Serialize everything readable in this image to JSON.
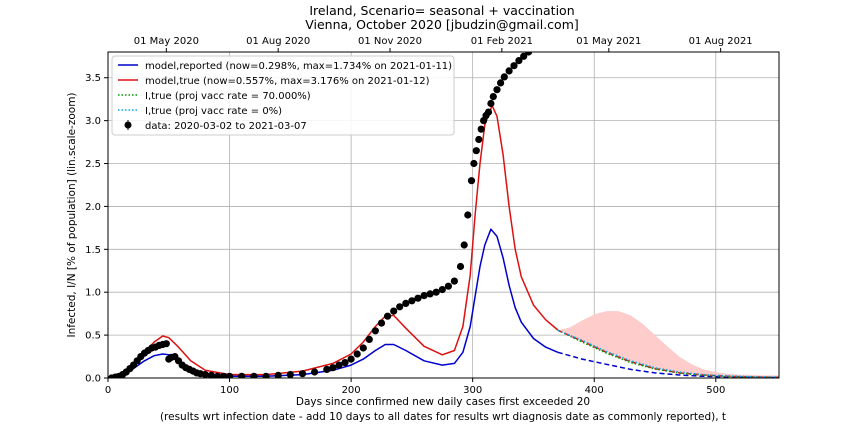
{
  "chart_data": {
    "type": "line",
    "title": "Ireland, Scenario= seasonal + vaccination",
    "subtitle": "Vienna, October 2020 [jbudzin@gmail.com]",
    "xlabel": "Days since confirmed new daily cases first exceeded 20",
    "xlabel2": "(results wrt infection date - add 10 days to all dates for results wrt diagnosis date as commonly reported), t",
    "ylabel": "Infected, I/N [% of population] (lin.scale-zoom)",
    "xlim": [
      0,
      552
    ],
    "ylim": [
      0,
      3.8
    ],
    "grid": true,
    "legend_position": "top-left",
    "x_ticks": [
      0,
      100,
      200,
      300,
      400,
      500
    ],
    "y_ticks": [
      0.0,
      0.5,
      1.0,
      1.5,
      2.0,
      2.5,
      3.0,
      3.5
    ],
    "top_axis": {
      "ticks": [
        {
          "label": "01 May 2020",
          "x": 48
        },
        {
          "label": "01 Aug 2020",
          "x": 140
        },
        {
          "label": "01 Nov 2020",
          "x": 232
        },
        {
          "label": "01 Feb 2021",
          "x": 324
        },
        {
          "label": "01 May 2021",
          "x": 412
        },
        {
          "label": "01 Aug 2021",
          "x": 504
        }
      ]
    },
    "series": [
      {
        "name": "model,reported (now=0.298%, max=1.734% on 2021-01-11)",
        "color": "#0000cc",
        "style": "solid",
        "x": [
          0,
          10,
          20,
          30,
          38,
          45,
          50,
          58,
          68,
          80,
          100,
          130,
          160,
          185,
          200,
          210,
          220,
          228,
          235,
          245,
          260,
          275,
          285,
          292,
          298,
          302,
          306,
          310,
          315,
          320,
          325,
          330,
          335,
          340,
          350,
          360,
          370
        ],
        "y": [
          0,
          0.03,
          0.1,
          0.2,
          0.26,
          0.28,
          0.27,
          0.21,
          0.11,
          0.05,
          0.02,
          0.02,
          0.04,
          0.09,
          0.15,
          0.22,
          0.32,
          0.39,
          0.39,
          0.32,
          0.2,
          0.15,
          0.17,
          0.3,
          0.6,
          0.95,
          1.3,
          1.55,
          1.734,
          1.65,
          1.4,
          1.08,
          0.82,
          0.65,
          0.46,
          0.36,
          0.3
        ]
      },
      {
        "name": "model,true (now=0.557%, max=3.176% on 2021-01-12)",
        "color": "#dd1111",
        "style": "solid",
        "x": [
          0,
          10,
          20,
          30,
          38,
          45,
          50,
          58,
          68,
          80,
          100,
          130,
          160,
          185,
          200,
          210,
          220,
          228,
          235,
          245,
          260,
          275,
          285,
          292,
          298,
          302,
          306,
          310,
          316,
          320,
          325,
          330,
          335,
          340,
          350,
          360,
          370
        ],
        "y": [
          0,
          0.05,
          0.15,
          0.3,
          0.42,
          0.49,
          0.47,
          0.36,
          0.2,
          0.09,
          0.04,
          0.04,
          0.08,
          0.17,
          0.28,
          0.42,
          0.6,
          0.72,
          0.73,
          0.58,
          0.37,
          0.27,
          0.32,
          0.6,
          1.2,
          1.9,
          2.5,
          2.95,
          3.176,
          3.05,
          2.6,
          2.0,
          1.5,
          1.18,
          0.85,
          0.68,
          0.56
        ]
      },
      {
        "name": "model,reported projected",
        "color": "#0000cc",
        "style": "dashed",
        "x": [
          370,
          390,
          410,
          430,
          450,
          470,
          490,
          510,
          530,
          552
        ],
        "y": [
          0.3,
          0.22,
          0.16,
          0.1,
          0.06,
          0.035,
          0.02,
          0.012,
          0.008,
          0.005
        ]
      },
      {
        "name": "model,true projected",
        "color": "#dd1111",
        "style": "dashed",
        "x": [
          370,
          390,
          410,
          430,
          450,
          470,
          490,
          510,
          530,
          552
        ],
        "y": [
          0.556,
          0.43,
          0.3,
          0.19,
          0.11,
          0.06,
          0.035,
          0.02,
          0.012,
          0.008
        ]
      },
      {
        "name": "I,true (proj vacc rate = 70.000%)",
        "color": "#009900",
        "style": "dotted",
        "x": [
          370,
          390,
          410,
          430,
          450,
          470,
          490,
          510,
          530,
          552
        ],
        "y": [
          0.556,
          0.42,
          0.29,
          0.18,
          0.105,
          0.057,
          0.032,
          0.018,
          0.011,
          0.007
        ]
      },
      {
        "name": "I,true (proj vacc rate = 0%)",
        "color": "#00aaee",
        "style": "dotted",
        "x": [
          370,
          390,
          410,
          430,
          450,
          470,
          490,
          510,
          530,
          552
        ],
        "y": [
          0.556,
          0.44,
          0.31,
          0.2,
          0.12,
          0.07,
          0.04,
          0.024,
          0.015,
          0.01
        ]
      }
    ],
    "projection_band": {
      "color": "#ffcccc",
      "x": [
        370,
        380,
        390,
        400,
        410,
        420,
        430,
        440,
        450,
        460,
        470,
        480,
        490,
        500,
        510,
        520,
        530,
        540,
        552
      ],
      "upper": [
        0.556,
        0.59,
        0.67,
        0.74,
        0.78,
        0.78,
        0.73,
        0.63,
        0.5,
        0.37,
        0.25,
        0.16,
        0.1,
        0.07,
        0.05,
        0.04,
        0.035,
        0.03,
        0.03
      ],
      "lower": [
        0.556,
        0.49,
        0.43,
        0.36,
        0.3,
        0.25,
        0.19,
        0.15,
        0.11,
        0.08,
        0.06,
        0.045,
        0.035,
        0.025,
        0.02,
        0.015,
        0.012,
        0.01,
        0.008
      ]
    },
    "data": {
      "name": "data: 2020-03-02 to 2021-03-07",
      "color": "#000000",
      "x": [
        3,
        6,
        9,
        12,
        15,
        18,
        21,
        24,
        27,
        30,
        33,
        36,
        39,
        42,
        45,
        48,
        50,
        52,
        55,
        58,
        61,
        64,
        67,
        70,
        73,
        76,
        80,
        85,
        90,
        95,
        100,
        110,
        120,
        130,
        140,
        150,
        160,
        170,
        180,
        185,
        190,
        195,
        200,
        205,
        210,
        215,
        220,
        225,
        230,
        235,
        240,
        245,
        250,
        255,
        260,
        265,
        270,
        275,
        280,
        285,
        290,
        293,
        296,
        299,
        301,
        303,
        305,
        307,
        309,
        311,
        313,
        315,
        317,
        320,
        323,
        326,
        330,
        334,
        338,
        342,
        346,
        350,
        354,
        358,
        362,
        366,
        370
      ],
      "y": [
        0.0,
        0.01,
        0.02,
        0.04,
        0.07,
        0.11,
        0.15,
        0.2,
        0.25,
        0.29,
        0.32,
        0.35,
        0.36,
        0.38,
        0.39,
        0.4,
        0.22,
        0.24,
        0.25,
        0.2,
        0.15,
        0.12,
        0.1,
        0.08,
        0.06,
        0.05,
        0.04,
        0.03,
        0.02,
        0.02,
        0.02,
        0.02,
        0.02,
        0.02,
        0.03,
        0.04,
        0.05,
        0.07,
        0.1,
        0.12,
        0.15,
        0.18,
        0.22,
        0.28,
        0.35,
        0.45,
        0.55,
        0.64,
        0.72,
        0.78,
        0.83,
        0.87,
        0.9,
        0.93,
        0.96,
        0.98,
        1.0,
        1.03,
        1.07,
        1.13,
        1.3,
        1.55,
        1.9,
        2.3,
        2.5,
        2.65,
        2.78,
        2.9,
        3.0,
        3.06,
        3.1,
        3.2,
        3.28,
        3.36,
        3.44,
        3.51,
        3.58,
        3.64,
        3.7,
        3.75,
        3.8,
        3.85,
        3.9,
        3.95,
        4.0,
        4.05,
        4.1
      ]
    }
  }
}
